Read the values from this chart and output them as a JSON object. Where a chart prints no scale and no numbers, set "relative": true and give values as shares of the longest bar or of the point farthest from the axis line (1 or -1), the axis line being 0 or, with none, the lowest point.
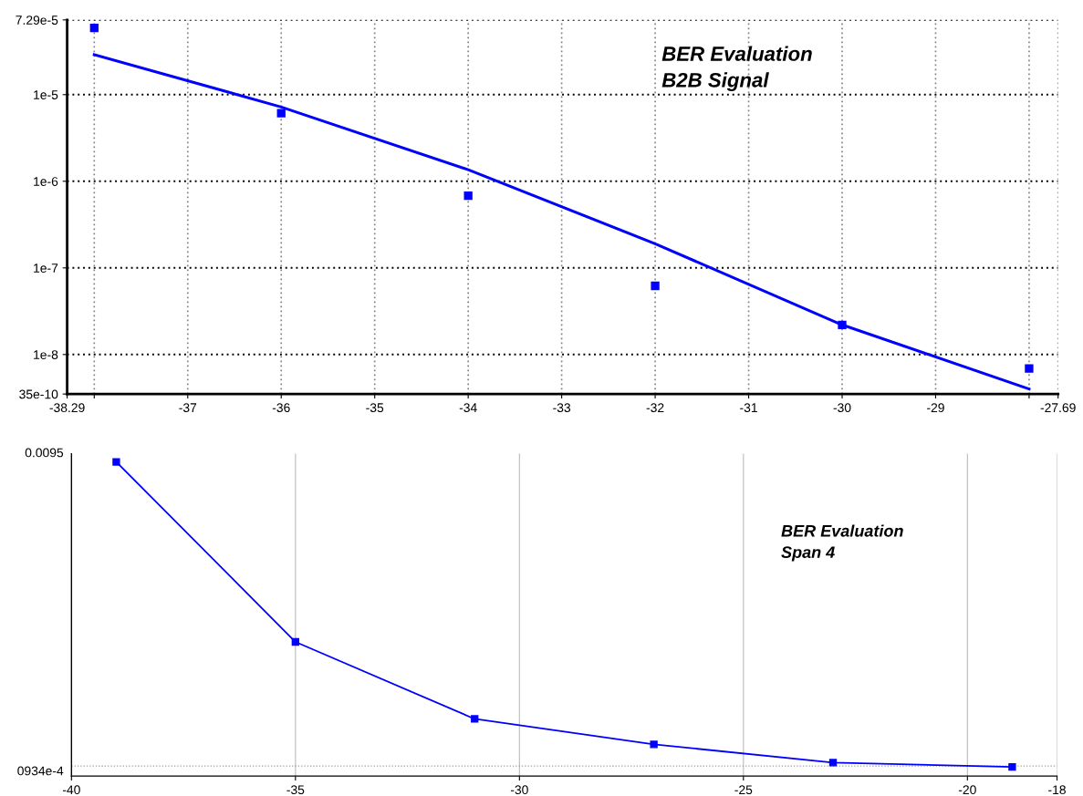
{
  "chart_data": [
    {
      "type": "scatter",
      "annotations": [
        "BER Evaluation\nB2B Signal"
      ],
      "log": "y",
      "grid": true,
      "marker": "square",
      "xlim": [
        -38.29,
        -27.69
      ],
      "xticks": [
        -38.29,
        {
          "value": -38,
          "label": null
        },
        -37,
        -36,
        -35,
        -34,
        -33,
        -32,
        -31,
        -30,
        -29,
        {
          "value": -28,
          "label": null
        },
        -27.69
      ],
      "ylim": [
        3.5e-09,
        7.29e-05
      ],
      "yticks": [
        {
          "value": 3.5e-09,
          "label": "35e-10"
        },
        {
          "value": 1e-08,
          "label": "1e-8"
        },
        {
          "value": 1e-07,
          "label": "1e-7"
        },
        {
          "value": 1e-06,
          "label": "1e-6"
        },
        {
          "value": 1e-05,
          "label": "1e-5"
        },
        {
          "value": 7.29e-05,
          "label": "7.29e-5"
        }
      ],
      "series": [
        {
          "type": "scatter",
          "color": "#0000ff",
          "x": [
            -38,
            -36,
            -34,
            -32,
            -30,
            -28
          ],
          "values": [
            5.9e-05,
            6.1e-06,
            6.8e-07,
            6.2e-08,
            2.2e-08,
            6.9e-09
          ]
        },
        {
          "type": "line",
          "color": "#0000ff",
          "marker": "none",
          "x": [
            -38,
            -36,
            -34,
            -32,
            -30,
            -28
          ],
          "values": [
            2.9e-05,
            7.2e-06,
            1.36e-06,
            1.9e-07,
            2.2e-08,
            4e-09
          ]
        }
      ]
    },
    {
      "type": "line",
      "relative": true,
      "annotations": [
        "BER Evaluation\nSpan 4",
        "0.0095"
      ],
      "grid": "x",
      "marker": "square",
      "xlim": [
        -40,
        -18
      ],
      "xticks": [
        -40,
        -35,
        -30,
        -25,
        -20,
        -18
      ],
      "ref_lines": [
        {
          "axis": "y",
          "value": 0.032,
          "label": "0934e-4",
          "color": "#999999",
          "line_style": "dotted"
        }
      ],
      "series": [
        {
          "color": "#0000ff",
          "x": [
            -39,
            -35,
            -31,
            -27,
            -23,
            -19
          ],
          "values": [
            1,
            0.427,
            0.182,
            0.101,
            0.043,
            0.029
          ]
        }
      ]
    }
  ]
}
